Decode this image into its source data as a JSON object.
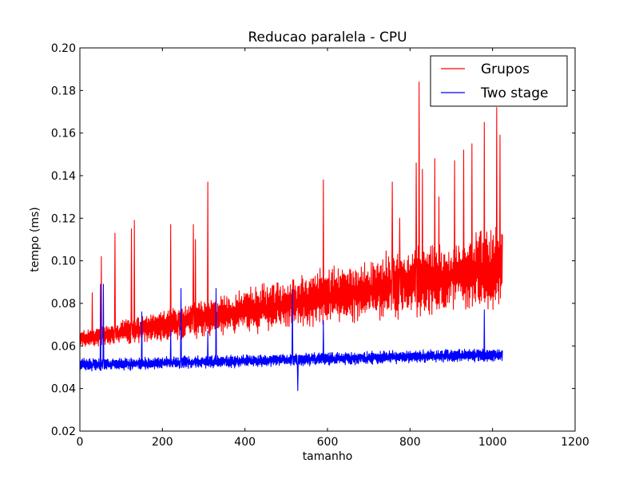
{
  "chart_data": {
    "type": "line",
    "title": "Reducao paralela - CPU",
    "xlabel": "tamanho",
    "ylabel": "tempo (ms)",
    "xlim": [
      0,
      1200
    ],
    "ylim": [
      0.02,
      0.2
    ],
    "xticks": [
      0,
      200,
      400,
      600,
      800,
      1000,
      1200
    ],
    "yticks": [
      0.02,
      0.04,
      0.06,
      0.08,
      0.1,
      0.12,
      0.14,
      0.16,
      0.18,
      0.2
    ],
    "xtick_labels": [
      "0",
      "200",
      "400",
      "600",
      "800",
      "1000",
      "1200"
    ],
    "ytick_labels": [
      "0.02",
      "0.04",
      "0.06",
      "0.08",
      "0.10",
      "0.12",
      "0.14",
      "0.16",
      "0.18",
      "0.20"
    ],
    "grid": false,
    "legend_position": "top-right",
    "x_range": [
      0,
      1024
    ],
    "series": [
      {
        "name": "Grupos",
        "color": "#ff0000",
        "base_start": 0.063,
        "base_end": 0.097,
        "noise_start": 0.004,
        "noise_end": 0.02,
        "spikes": [
          [
            30,
            0.085
          ],
          [
            52,
            0.102
          ],
          [
            85,
            0.113
          ],
          [
            125,
            0.115
          ],
          [
            132,
            0.119
          ],
          [
            220,
            0.117
          ],
          [
            275,
            0.117
          ],
          [
            280,
            0.11
          ],
          [
            310,
            0.137
          ],
          [
            590,
            0.138
          ],
          [
            757,
            0.137
          ],
          [
            775,
            0.12
          ],
          [
            815,
            0.146
          ],
          [
            822,
            0.184
          ],
          [
            830,
            0.143
          ],
          [
            860,
            0.148
          ],
          [
            870,
            0.13
          ],
          [
            908,
            0.147
          ],
          [
            930,
            0.152
          ],
          [
            950,
            0.155
          ],
          [
            980,
            0.165
          ],
          [
            1010,
            0.172
          ],
          [
            1018,
            0.159
          ]
        ]
      },
      {
        "name": "Two stage",
        "color": "#0000ff",
        "base_start": 0.051,
        "base_end": 0.056,
        "noise_start": 0.003,
        "noise_end": 0.003,
        "spikes": [
          [
            50,
            0.089
          ],
          [
            57,
            0.089
          ],
          [
            150,
            0.076
          ],
          [
            220,
            0.067
          ],
          [
            245,
            0.087
          ],
          [
            310,
            0.067
          ],
          [
            330,
            0.087
          ],
          [
            515,
            0.086
          ],
          [
            528,
            0.039
          ],
          [
            590,
            0.072
          ],
          [
            980,
            0.077
          ]
        ]
      }
    ]
  }
}
